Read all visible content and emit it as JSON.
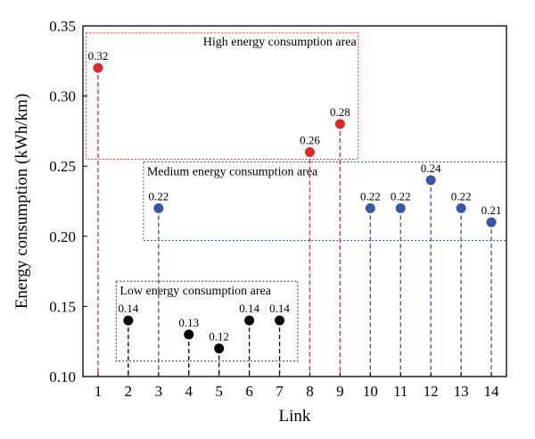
{
  "chart_data": {
    "type": "scatter",
    "style": "stem",
    "xlabel": "Link",
    "ylabel": "Energy consumption (kWh/km)",
    "xlim": [
      0.5,
      14.5
    ],
    "ylim": [
      0.1,
      0.35
    ],
    "xticks": [
      "1",
      "2",
      "3",
      "4",
      "5",
      "6",
      "7",
      "8",
      "9",
      "10",
      "11",
      "12",
      "13",
      "14"
    ],
    "yticks": [
      "0.10",
      "0.15",
      "0.20",
      "0.25",
      "0.30",
      "0.35"
    ],
    "x": [
      1,
      2,
      3,
      4,
      5,
      6,
      7,
      8,
      9,
      10,
      11,
      12,
      13,
      14
    ],
    "values": [
      0.32,
      0.14,
      0.22,
      0.13,
      0.12,
      0.14,
      0.14,
      0.26,
      0.28,
      0.22,
      0.22,
      0.24,
      0.22,
      0.21
    ],
    "labels": [
      "0.32",
      "0.14",
      "0.22",
      "0.13",
      "0.12",
      "0.14",
      "0.14",
      "0.26",
      "0.28",
      "0.22",
      "0.22",
      "0.24",
      "0.22",
      "0.21"
    ],
    "categories_per_point": [
      "high",
      "low",
      "medium",
      "low",
      "low",
      "low",
      "low",
      "high",
      "high",
      "medium",
      "medium",
      "medium",
      "medium",
      "medium"
    ],
    "colors": {
      "high": "#e0282a",
      "medium": "#3a55a8",
      "low": "#000000"
    },
    "regions": [
      {
        "name": "high",
        "label": "High energy consumption area",
        "x_range": [
          0.6,
          9.6
        ],
        "y_range": [
          0.255,
          0.345
        ],
        "color": "#e0282a"
      },
      {
        "name": "medium",
        "label": "Medium energy consumption area",
        "x_range": [
          2.5,
          14.5
        ],
        "y_range": [
          0.197,
          0.253
        ],
        "color": "#3a55a8"
      },
      {
        "name": "low",
        "label": "Low energy consumption area",
        "x_range": [
          1.6,
          7.6
        ],
        "y_range": [
          0.111,
          0.168
        ],
        "color": "#333333"
      }
    ],
    "grid": false,
    "legend": "none"
  }
}
